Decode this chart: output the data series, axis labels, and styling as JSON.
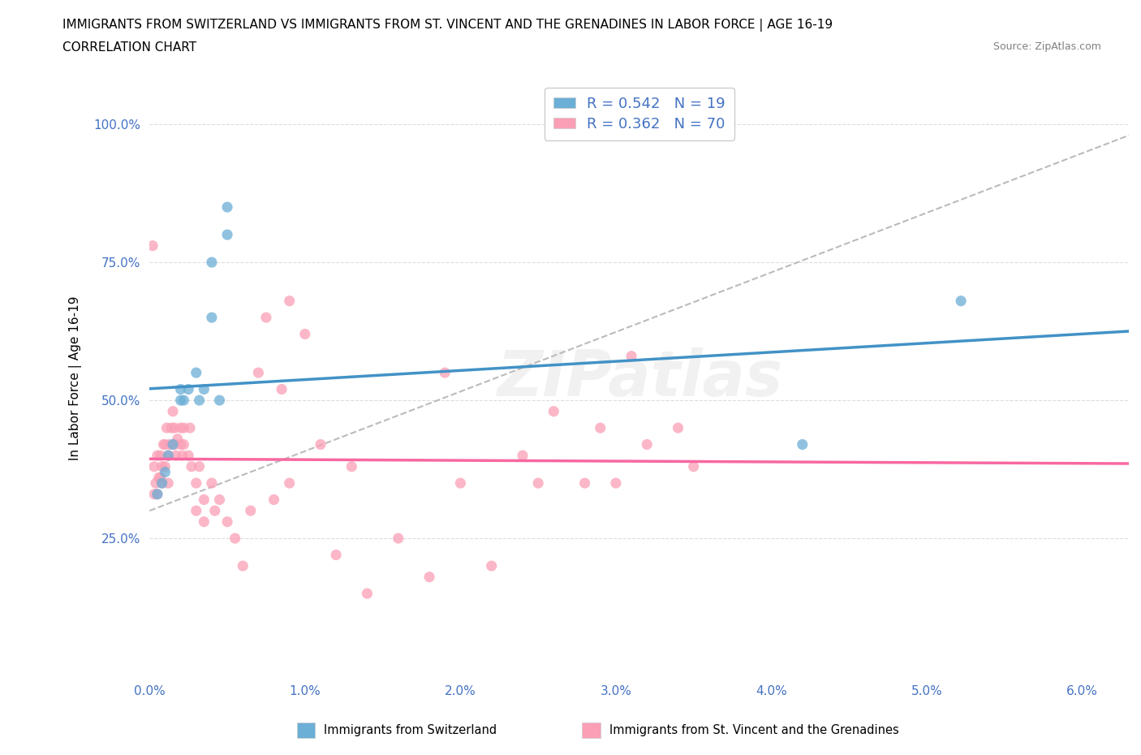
{
  "title_line1": "IMMIGRANTS FROM SWITZERLAND VS IMMIGRANTS FROM ST. VINCENT AND THE GRENADINES IN LABOR FORCE | AGE 16-19",
  "title_line2": "CORRELATION CHART",
  "source_text": "Source: ZipAtlas.com",
  "ylabel": "In Labor Force | Age 16-19",
  "xlim": [
    0.0,
    0.063
  ],
  "ylim": [
    0.0,
    1.08
  ],
  "xtick_labels": [
    "0.0%",
    "1.0%",
    "2.0%",
    "3.0%",
    "4.0%",
    "5.0%",
    "6.0%"
  ],
  "xtick_vals": [
    0.0,
    0.01,
    0.02,
    0.03,
    0.04,
    0.05,
    0.06
  ],
  "ytick_labels": [
    "25.0%",
    "50.0%",
    "75.0%",
    "100.0%"
  ],
  "ytick_vals": [
    0.25,
    0.5,
    0.75,
    1.0
  ],
  "watermark": "ZIPatlas",
  "legend_r1": "0.542",
  "legend_n1": "19",
  "legend_r2": "0.362",
  "legend_n2": "70",
  "color_swiss": "#6baed6",
  "color_svg": "#fa9fb5",
  "color_swiss_line": "#4292c6",
  "color_svg_line": "#f768a1",
  "color_dashed": "#bbbbbb",
  "swiss_scatter_x": [
    0.0005,
    0.0008,
    0.001,
    0.0012,
    0.0015,
    0.002,
    0.002,
    0.0022,
    0.0025,
    0.003,
    0.0032,
    0.0035,
    0.004,
    0.004,
    0.0045,
    0.005,
    0.005,
    0.0522,
    0.042
  ],
  "swiss_scatter_y": [
    0.33,
    0.35,
    0.37,
    0.4,
    0.42,
    0.5,
    0.52,
    0.5,
    0.52,
    0.55,
    0.5,
    0.52,
    0.65,
    0.75,
    0.5,
    0.8,
    0.85,
    0.68,
    0.42
  ],
  "svg_scatter_x": [
    0.0002,
    0.0003,
    0.0003,
    0.0004,
    0.0005,
    0.0005,
    0.0006,
    0.0007,
    0.0007,
    0.0008,
    0.0008,
    0.0009,
    0.001,
    0.001,
    0.0011,
    0.0012,
    0.0012,
    0.0013,
    0.0014,
    0.0015,
    0.0016,
    0.0016,
    0.0017,
    0.0018,
    0.002,
    0.002,
    0.0021,
    0.0022,
    0.0022,
    0.0025,
    0.0026,
    0.0027,
    0.003,
    0.003,
    0.0032,
    0.0035,
    0.0035,
    0.004,
    0.0042,
    0.0045,
    0.005,
    0.0055,
    0.006,
    0.0065,
    0.007,
    0.0075,
    0.008,
    0.0085,
    0.009,
    0.009,
    0.01,
    0.011,
    0.012,
    0.013,
    0.014,
    0.016,
    0.018,
    0.019,
    0.02,
    0.022,
    0.024,
    0.025,
    0.026,
    0.028,
    0.029,
    0.03,
    0.031,
    0.032,
    0.034,
    0.035
  ],
  "svg_scatter_y": [
    0.78,
    0.33,
    0.38,
    0.35,
    0.33,
    0.4,
    0.36,
    0.36,
    0.4,
    0.35,
    0.38,
    0.42,
    0.38,
    0.42,
    0.45,
    0.35,
    0.4,
    0.42,
    0.45,
    0.48,
    0.42,
    0.45,
    0.4,
    0.43,
    0.42,
    0.45,
    0.4,
    0.42,
    0.45,
    0.4,
    0.45,
    0.38,
    0.35,
    0.3,
    0.38,
    0.28,
    0.32,
    0.35,
    0.3,
    0.32,
    0.28,
    0.25,
    0.2,
    0.3,
    0.55,
    0.65,
    0.32,
    0.52,
    0.68,
    0.35,
    0.62,
    0.42,
    0.22,
    0.38,
    0.15,
    0.25,
    0.18,
    0.55,
    0.35,
    0.2,
    0.4,
    0.35,
    0.48,
    0.35,
    0.45,
    0.35,
    0.58,
    0.42,
    0.45,
    0.38
  ]
}
